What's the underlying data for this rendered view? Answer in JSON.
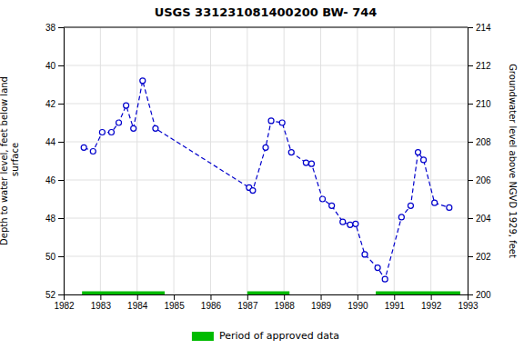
{
  "chart_data": {
    "type": "line",
    "title": "USGS 331231081400200 BW- 744",
    "ylabel": "Depth to water level, feet below land\n surface",
    "y2label": "Groundwater level above NGVD 1929, feet",
    "x": [
      1982.55,
      1982.8,
      1983.05,
      1983.3,
      1983.5,
      1983.7,
      1983.9,
      1984.15,
      1984.5,
      1987.05,
      1987.15,
      1987.5,
      1987.65,
      1987.95,
      1988.2,
      1988.6,
      1988.75,
      1989.05,
      1989.3,
      1989.6,
      1989.8,
      1989.95,
      1990.2,
      1990.55,
      1990.75,
      1991.2,
      1991.45,
      1991.65,
      1991.8,
      1992.1,
      1992.5
    ],
    "series": [
      {
        "color": "#0000CC",
        "marker": "circle-open",
        "line_style": "dashed",
        "values": [
          44.3,
          44.5,
          43.5,
          43.5,
          43.0,
          42.1,
          43.3,
          40.8,
          43.3,
          46.4,
          46.55,
          44.3,
          42.9,
          43.0,
          44.55,
          45.1,
          45.15,
          47.0,
          47.35,
          48.2,
          48.35,
          48.3,
          49.9,
          50.6,
          51.2,
          47.95,
          47.35,
          44.55,
          44.95,
          47.2,
          47.45
        ]
      }
    ],
    "xlim": [
      1982,
      1993
    ],
    "xticks": [
      1982,
      1983,
      1984,
      1985,
      1986,
      1987,
      1988,
      1989,
      1990,
      1991,
      1992,
      1993
    ],
    "ylim": [
      52,
      38
    ],
    "yticks": [
      38,
      40,
      42,
      44,
      46,
      48,
      50,
      52
    ],
    "y2lim": [
      200,
      214
    ],
    "y2ticks": [
      214,
      212,
      210,
      208,
      206,
      204,
      202,
      200
    ],
    "grid": true,
    "legend": "bottom",
    "approved_segments": {
      "name": "Period of approved data",
      "color": "#00BB00",
      "y": 52,
      "x_ranges": [
        [
          1982.5,
          1984.75
        ],
        [
          1987.0,
          1988.15
        ],
        [
          1990.5,
          1992.8
        ]
      ]
    }
  }
}
